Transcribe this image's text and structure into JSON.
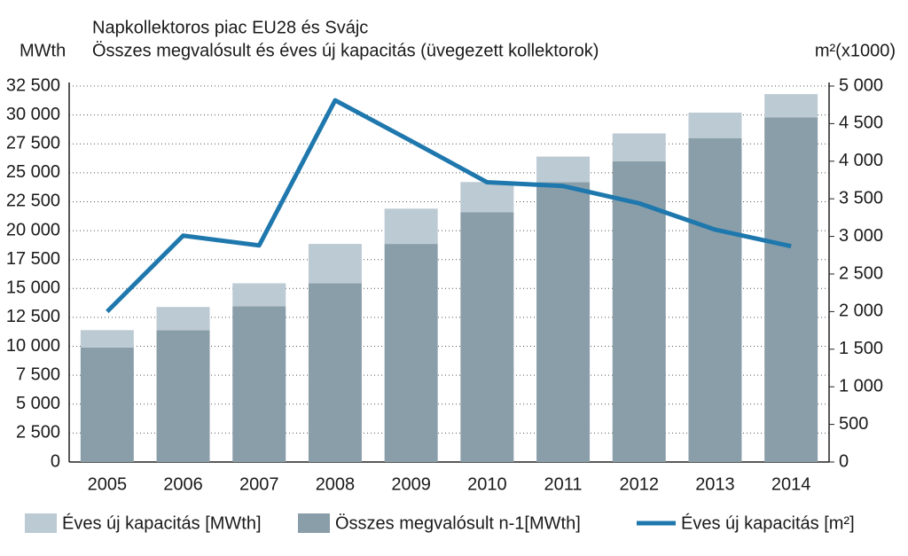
{
  "chart_data": {
    "type": "bar_line",
    "title": "Napkollektoros piac EU28 és Svájc",
    "subtitle": "Összes megvalósult és éves új kapacitás (üvegezett kollektorok)",
    "y_label": "MWth",
    "y2_label": "m²(x1000)",
    "categories": [
      "2005",
      "2006",
      "2007",
      "2008",
      "2009",
      "2010",
      "2011",
      "2012",
      "2013",
      "2014"
    ],
    "series": [
      {
        "name": "Éves új kapacitás [MWth]",
        "color": "#bccad3",
        "stack": "top",
        "values": [
          1500,
          2000,
          2000,
          3400,
          3050,
          2600,
          2200,
          2400,
          2200,
          2000
        ]
      },
      {
        "name": "Összes megvalósult n-1[MWth]",
        "color": "#8a9ea9",
        "stack": "base",
        "values": [
          9900,
          11400,
          13450,
          15450,
          18850,
          21600,
          24200,
          26000,
          28000,
          29800
        ]
      },
      {
        "name": "Éves új kapacitás [m²]",
        "color": "#1f78ad",
        "axis": "y2",
        "values": [
          2000,
          3010,
          2880,
          4810,
          4270,
          3720,
          3670,
          3440,
          3090,
          2870
        ]
      }
    ],
    "ylim": [
      0,
      32500
    ],
    "yticks": [
      0,
      {
        "value": 2500,
        "label": "2 500"
      },
      {
        "value": 5000,
        "label": "5 000"
      },
      {
        "value": 7500,
        "label": "7 500"
      },
      {
        "value": 10000,
        "label": "10 000"
      },
      {
        "value": 12500,
        "label": "12 500"
      },
      {
        "value": 15000,
        "label": "15 000"
      },
      {
        "value": 17500,
        "label": "17 500"
      },
      {
        "value": 20000,
        "label": "20 000"
      },
      {
        "value": 22500,
        "label": "22 500"
      },
      {
        "value": 25000,
        "label": "25 000"
      },
      {
        "value": 27500,
        "label": "27 500"
      },
      {
        "value": 30000,
        "label": "30 000"
      },
      {
        "value": 32500,
        "label": "32 500"
      }
    ],
    "y2lim": [
      0,
      5000
    ],
    "y2ticks": [
      0,
      500,
      {
        "value": 1000,
        "label": "1 000"
      },
      {
        "value": 1500,
        "label": "1 500"
      },
      {
        "value": 2000,
        "label": "2 000"
      },
      {
        "value": 2500,
        "label": "2 500"
      },
      {
        "value": 3000,
        "label": "3 000"
      },
      {
        "value": 3500,
        "label": "3 500"
      },
      {
        "value": 4000,
        "label": "4 000"
      },
      {
        "value": 4500,
        "label": "4 500"
      },
      {
        "value": 5000,
        "label": "5 000"
      }
    ],
    "grid": true,
    "legend": "bottom"
  }
}
